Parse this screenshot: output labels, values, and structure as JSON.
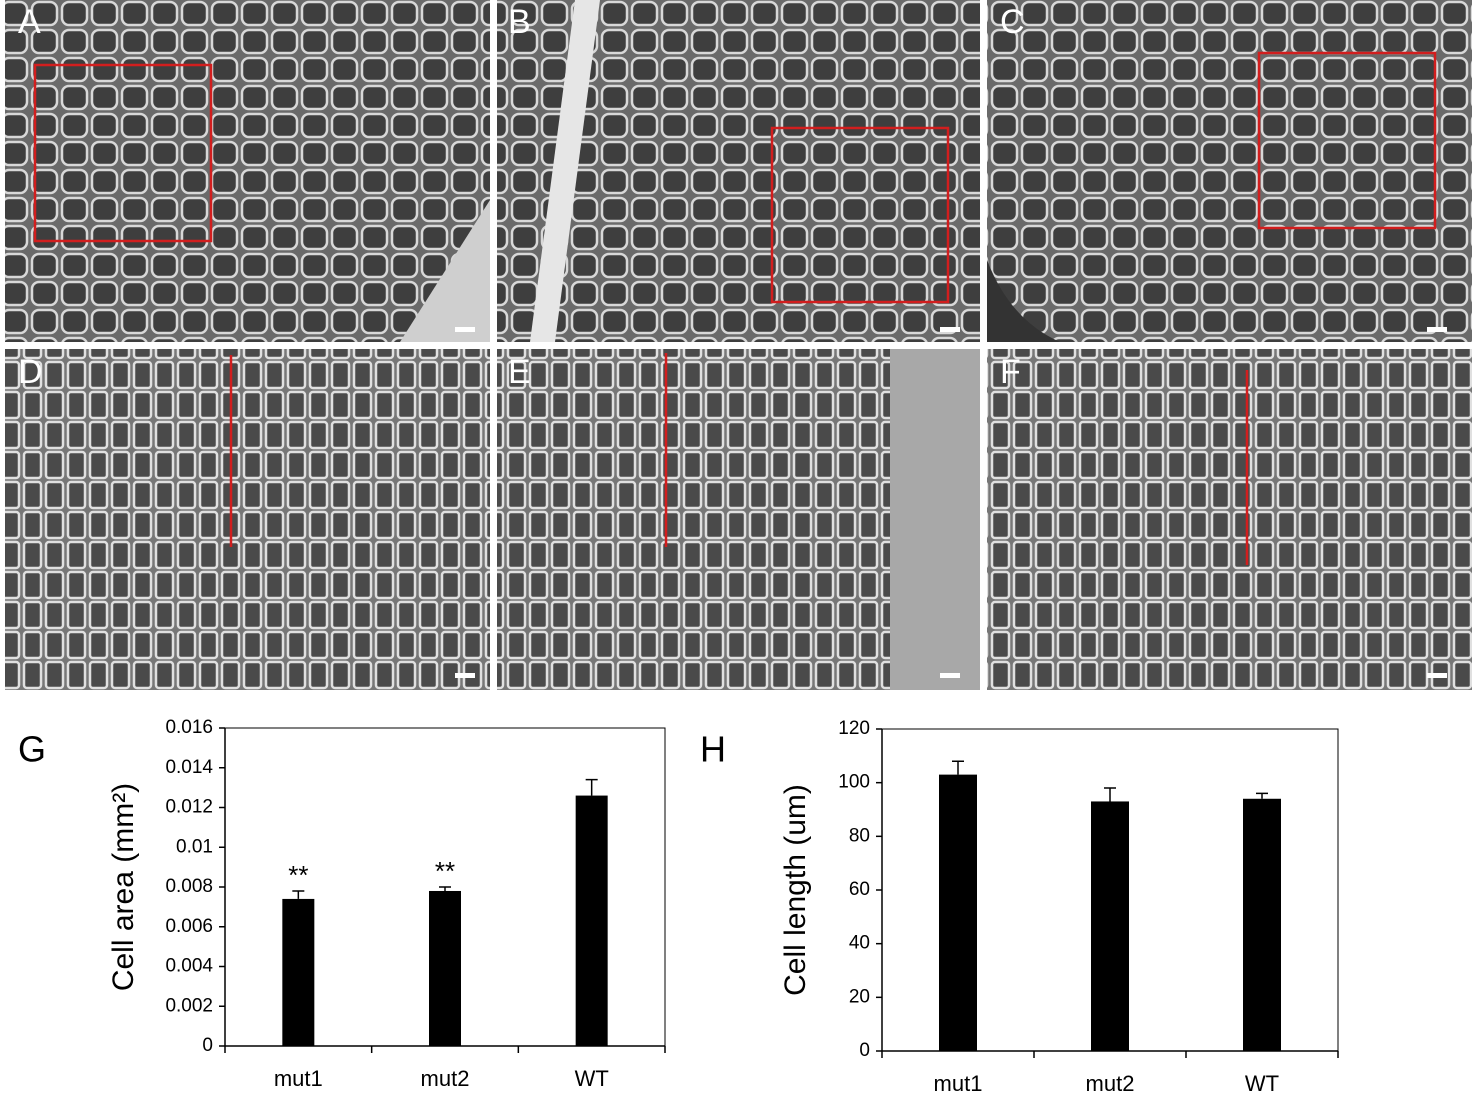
{
  "panels": [
    {
      "label": "A"
    },
    {
      "label": "B"
    },
    {
      "label": "C"
    },
    {
      "label": "D"
    },
    {
      "label": "E"
    },
    {
      "label": "F"
    }
  ],
  "chart_data": [
    {
      "type": "bar",
      "panel": "G",
      "ylabel": "Cell area (mm²)",
      "categories": [
        "mut1",
        "mut2",
        "WT"
      ],
      "values": [
        0.0074,
        0.0078,
        0.0126
      ],
      "errors": [
        0.0004,
        0.0002,
        0.0008
      ],
      "annotations": [
        "**",
        "**",
        null
      ],
      "color": "#000000",
      "ylim": [
        0,
        0.016
      ],
      "yticks": [
        0,
        0.002,
        0.004,
        0.006,
        0.008,
        0.01,
        0.012,
        0.014,
        0.016
      ]
    },
    {
      "type": "bar",
      "panel": "H",
      "ylabel": "Cell length (um)",
      "categories": [
        "mut1",
        "mut2",
        "WT"
      ],
      "values": [
        103,
        93,
        94
      ],
      "errors": [
        5,
        5,
        2
      ],
      "color": "#000000",
      "ylim": [
        0,
        120
      ],
      "yticks": [
        0,
        20,
        40,
        60,
        80,
        100,
        120
      ]
    }
  ]
}
